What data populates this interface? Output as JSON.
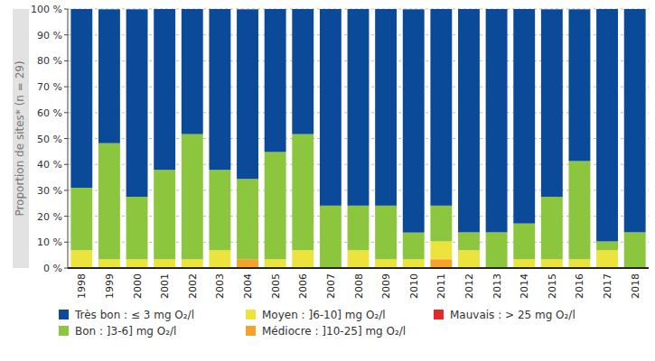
{
  "chart_data": {
    "type": "bar",
    "stacked": true,
    "grid": true,
    "y_label": "Proportion de sites* (n = 29)",
    "categories": [
      "1998",
      "1999",
      "2000",
      "2001",
      "2002",
      "2003",
      "2004",
      "2005",
      "2006",
      "2007",
      "2008",
      "2009",
      "2010",
      "2011",
      "2012",
      "2013",
      "2014",
      "2015",
      "2016",
      "2017",
      "2018"
    ],
    "ylim": [
      0,
      100
    ],
    "yticks": [
      {
        "value": 0,
        "label": "0 %"
      },
      {
        "value": 10,
        "label": "10 %"
      },
      {
        "value": 20,
        "label": "20 %"
      },
      {
        "value": 30,
        "label": "30 %"
      },
      {
        "value": 40,
        "label": "40 %"
      },
      {
        "value": 50,
        "label": "50 %"
      },
      {
        "value": 60,
        "label": "60 %"
      },
      {
        "value": 70,
        "label": "70 %"
      },
      {
        "value": 80,
        "label": "80 %"
      },
      {
        "value": 90,
        "label": "90 %"
      },
      {
        "value": 100,
        "label": "100 %"
      }
    ],
    "series": [
      {
        "name": "Très bon : ≤ 3 mg O₂/l",
        "color": "#0b4a99",
        "values": [
          69.0,
          51.7,
          72.4,
          62.1,
          48.3,
          62.1,
          65.5,
          55.2,
          48.3,
          75.9,
          75.9,
          75.9,
          86.2,
          75.9,
          86.2,
          86.2,
          82.8,
          72.4,
          58.6,
          89.7,
          86.2
        ]
      },
      {
        "name": "Bon : ]3-6] mg O₂/l",
        "color": "#8cc63f",
        "values": [
          24.1,
          44.8,
          24.1,
          34.5,
          48.3,
          31.0,
          31.0,
          41.4,
          44.8,
          24.1,
          17.2,
          20.7,
          10.3,
          13.8,
          6.9,
          13.8,
          13.8,
          24.1,
          37.9,
          3.4,
          13.8
        ]
      },
      {
        "name": "Moyen : ]6-10] mg O₂/l",
        "color": "#ece43c",
        "values": [
          6.9,
          3.4,
          3.4,
          3.4,
          3.4,
          6.9,
          0,
          3.4,
          6.9,
          0,
          6.9,
          3.4,
          3.4,
          6.9,
          6.9,
          0,
          3.4,
          3.4,
          3.4,
          6.9,
          0
        ]
      },
      {
        "name": "Médiocre : ]10-25] mg O₂/l",
        "color": "#f5a12a",
        "values": [
          0,
          0,
          0,
          0,
          0,
          0,
          3.4,
          0,
          0,
          0,
          0,
          0,
          0,
          3.4,
          0,
          0,
          0,
          0,
          0,
          0,
          0
        ]
      },
      {
        "name": "Mauvais : > 25 mg O₂/l",
        "color": "#e02b2b",
        "values": [
          0,
          0,
          0,
          0,
          0,
          0,
          0,
          0,
          0,
          0,
          0,
          0,
          0,
          0,
          0,
          0,
          0,
          0,
          0,
          0,
          0
        ]
      }
    ]
  }
}
